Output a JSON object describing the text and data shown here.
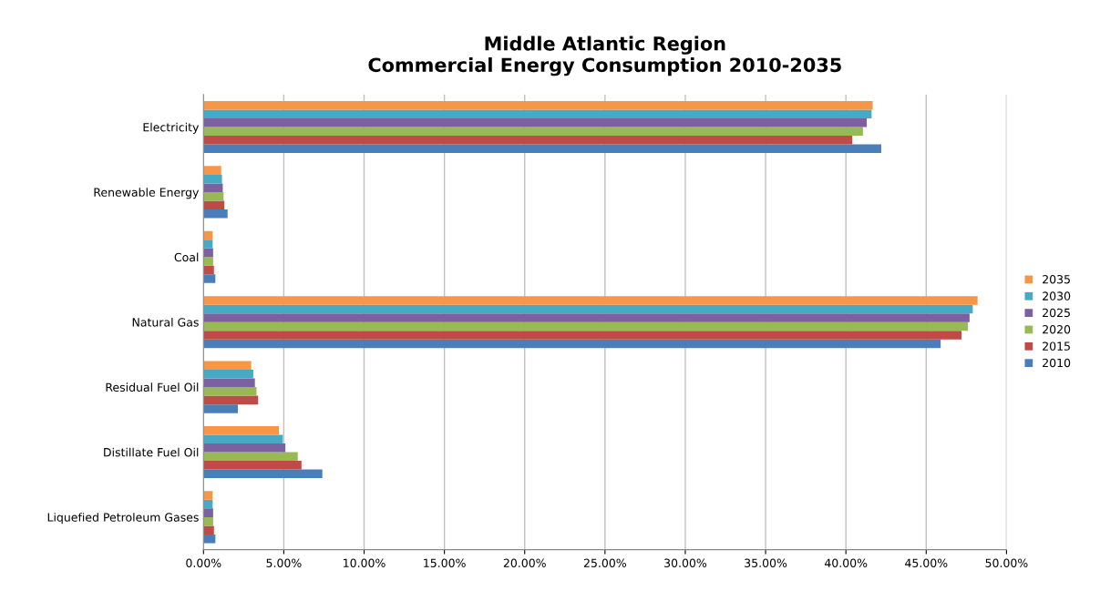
{
  "chart_data": {
    "type": "bar",
    "orientation": "horizontal",
    "title": "Middle Atlantic Region\nCommercial Energy Consumption 2010-2035",
    "categories": [
      "Electricity",
      "Renewable Energy",
      "Coal",
      "Natural Gas",
      "Residual Fuel Oil",
      "Distillate Fuel Oil",
      "Liquefied Petroleum Gases"
    ],
    "series": [
      {
        "name": "2010",
        "color": "#4a7ebb",
        "values": [
          42.2,
          1.5,
          0.74,
          45.9,
          2.14,
          7.4,
          0.74
        ]
      },
      {
        "name": "2015",
        "color": "#be4b48",
        "values": [
          40.4,
          1.3,
          0.65,
          47.2,
          3.4,
          6.1,
          0.65
        ]
      },
      {
        "name": "2020",
        "color": "#98b954",
        "values": [
          41.06,
          1.25,
          0.6,
          47.6,
          3.3,
          5.87,
          0.6
        ]
      },
      {
        "name": "2025",
        "color": "#7d60a0",
        "values": [
          41.3,
          1.2,
          0.6,
          47.7,
          3.2,
          5.1,
          0.6
        ]
      },
      {
        "name": "2030",
        "color": "#46aac5",
        "values": [
          41.6,
          1.15,
          0.57,
          47.9,
          3.1,
          4.94,
          0.57
        ]
      },
      {
        "name": "2035",
        "color": "#f79646",
        "values": [
          41.67,
          1.1,
          0.57,
          48.2,
          2.97,
          4.7,
          0.57
        ]
      }
    ],
    "xlim": [
      0,
      50
    ],
    "xticks": [
      {
        "value": 0,
        "label": "0.00%"
      },
      {
        "value": 5,
        "label": "5.00%"
      },
      {
        "value": 10,
        "label": "10.00%"
      },
      {
        "value": 15,
        "label": "15.00%"
      },
      {
        "value": 20,
        "label": "20.00%"
      },
      {
        "value": 25,
        "label": "25.00%"
      },
      {
        "value": 30,
        "label": "30.00%"
      },
      {
        "value": 35,
        "label": "35.00%"
      },
      {
        "value": 40,
        "label": "40.00%"
      },
      {
        "value": 45,
        "label": "45.00%"
      },
      {
        "value": 50,
        "label": "50.00%"
      }
    ],
    "grid": "x",
    "legend": "right"
  }
}
